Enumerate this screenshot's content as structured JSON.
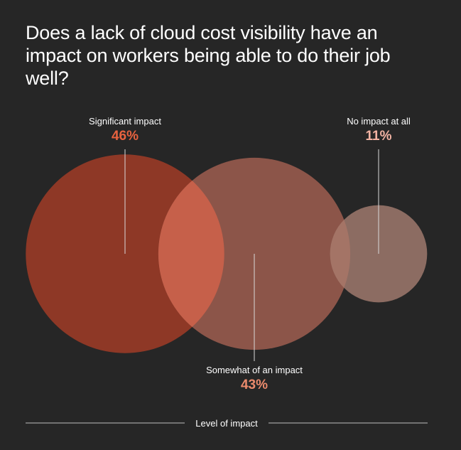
{
  "title": "Does a lack of cloud cost visibility have an impact on workers being able to do their job well?",
  "xlabel": "Level of impact",
  "colors": {
    "background": "#262626",
    "text": "#ffffff",
    "line": "#d9d9d9"
  },
  "chart_data": {
    "type": "bubble",
    "title": "Does a lack of cloud cost visibility have an impact on workers being able to do their job well?",
    "xlabel": "Level of impact",
    "categories": [
      "Significant impact",
      "Somewhat of an impact",
      "No impact at all"
    ],
    "values": [
      46,
      43,
      11
    ],
    "value_labels": [
      "46%",
      "43%",
      "11%"
    ],
    "unit": "%",
    "fill_colors": [
      "#8e3826",
      "#8c5549",
      "#8c6c62"
    ],
    "value_colors": [
      "#e8623f",
      "#eb8a6c",
      "#f2b3a3"
    ],
    "overlap_color": "#c6604a"
  }
}
